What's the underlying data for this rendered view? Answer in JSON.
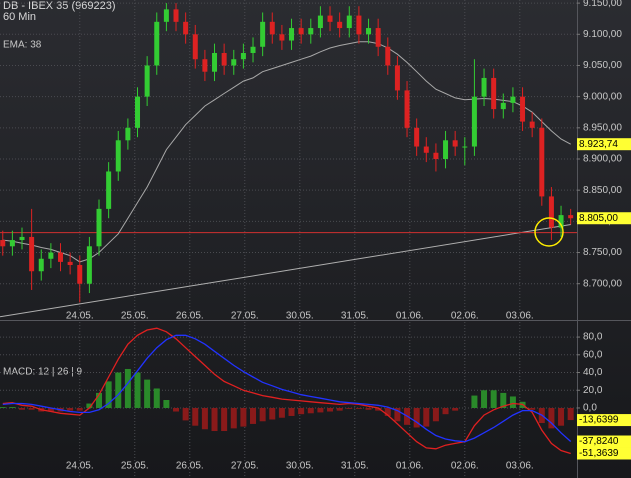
{
  "chart_data": [
    {
      "type": "candlestick",
      "title": "DB - IBEX 35 (969223)",
      "subtitle": "60 Min",
      "indicator_label": "EMA: 38",
      "x": [
        -0.4,
        -0.225,
        -0.05,
        0.125,
        0.3,
        0.475,
        0.65,
        0.825,
        1.0,
        1.175,
        1.35,
        1.525,
        1.7,
        1.875,
        2.05,
        2.225,
        2.4,
        2.575,
        2.75,
        2.925,
        3.1,
        3.275,
        3.45,
        3.625,
        3.8,
        3.975,
        4.15,
        4.325,
        4.5,
        4.675,
        4.85,
        5.025,
        5.2,
        5.375,
        5.55,
        5.725,
        5.9,
        6.075,
        6.25,
        6.425,
        6.6,
        6.775,
        6.95,
        7.125,
        7.3,
        7.475,
        7.65,
        7.825,
        8.0,
        8.175,
        8.35,
        8.525,
        8.7,
        8.875,
        9.05,
        9.225,
        9.4,
        9.575,
        9.75,
        9.925
      ],
      "open": [
        8770,
        8760,
        8770,
        8775,
        8720,
        8740,
        8750,
        8735,
        8730,
        8700,
        8760,
        8820,
        8880,
        8930,
        8950,
        9000,
        9050,
        9120,
        9140,
        9120,
        9100,
        9060,
        9040,
        9070,
        9050,
        9060,
        9070,
        9080,
        9120,
        9100,
        9090,
        9110,
        9100,
        9110,
        9130,
        9120,
        9110,
        9130,
        9100,
        9110,
        9080,
        9050,
        9010,
        8950,
        8920,
        8910,
        8900,
        8930,
        8920,
        8920,
        9000,
        9030,
        8980,
        8990,
        9000,
        8960,
        8950,
        8840,
        8790,
        8810
      ],
      "high": [
        8785,
        8785,
        8790,
        8820,
        8755,
        8765,
        8765,
        8750,
        8745,
        8775,
        8835,
        8895,
        8945,
        8965,
        9015,
        9065,
        9135,
        9150,
        9150,
        9135,
        9115,
        9075,
        9085,
        9085,
        9075,
        9085,
        9095,
        9135,
        9135,
        9115,
        9125,
        9125,
        9125,
        9145,
        9145,
        9135,
        9145,
        9145,
        9125,
        9125,
        9095,
        9065,
        9025,
        8965,
        8935,
        8925,
        8945,
        8945,
        8935,
        9060,
        9045,
        9045,
        9005,
        9015,
        9015,
        8975,
        8965,
        8855,
        8825,
        8820
      ],
      "low": [
        8745,
        8745,
        8755,
        8690,
        8705,
        8725,
        8720,
        8715,
        8670,
        8685,
        8745,
        8805,
        8865,
        8915,
        8935,
        8985,
        9035,
        9105,
        9105,
        9085,
        9045,
        9025,
        9025,
        9035,
        9035,
        9045,
        9055,
        9065,
        9085,
        9075,
        9075,
        9085,
        9085,
        9095,
        9105,
        9095,
        9095,
        9085,
        9085,
        9065,
        9035,
        8995,
        8935,
        8905,
        8895,
        8880,
        8885,
        8905,
        8890,
        8905,
        8985,
        8965,
        8965,
        8975,
        8945,
        8935,
        8825,
        8770,
        8775,
        8795
      ],
      "close": [
        8760,
        8770,
        8775,
        8720,
        8740,
        8750,
        8735,
        8730,
        8700,
        8760,
        8820,
        8880,
        8930,
        8950,
        9000,
        9050,
        9120,
        9140,
        9120,
        9100,
        9060,
        9040,
        9070,
        9050,
        9060,
        9070,
        9080,
        9120,
        9100,
        9090,
        9110,
        9100,
        9110,
        9130,
        9120,
        9110,
        9130,
        9100,
        9110,
        9080,
        9050,
        9010,
        8950,
        8920,
        8910,
        8900,
        8930,
        8920,
        8920,
        9000,
        9030,
        8980,
        8990,
        9000,
        8960,
        8950,
        8840,
        8790,
        8810,
        8805
      ],
      "up_color": "#33cc33",
      "down_color": "#dd2222",
      "ema_values": [
        8770,
        8768,
        8765,
        8762,
        8758,
        8755,
        8750,
        8745,
        8735,
        8740,
        8750,
        8765,
        8780,
        8805,
        8830,
        8855,
        8885,
        8915,
        8935,
        8955,
        8970,
        8985,
        8995,
        9005,
        9015,
        9025,
        9030,
        9040,
        9045,
        9050,
        9055,
        9060,
        9065,
        9072,
        9078,
        9082,
        9085,
        9088,
        9088,
        9085,
        9078,
        9068,
        9055,
        9040,
        9025,
        9012,
        9005,
        8998,
        8995,
        8996,
        8997,
        8996,
        8994,
        8992,
        8985,
        8975,
        8960,
        8945,
        8932,
        8923.74
      ],
      "ema_color": "#a8a8a8",
      "hline": 8782,
      "hline_color": "#d03030",
      "trendline": {
        "x": [
          -0.45,
          9.93
        ],
        "y": [
          8647,
          8795
        ],
        "color": "#b0b0b0"
      },
      "xlim": [
        -0.45,
        10.04
      ],
      "ylim": [
        8645,
        9155
      ],
      "xticks": [
        {
          "value": 1,
          "label": "24.05."
        },
        {
          "value": 2,
          "label": "25.05."
        },
        {
          "value": 3,
          "label": "26.05."
        },
        {
          "value": 4,
          "label": "27.05."
        },
        {
          "value": 5,
          "label": "30.05."
        },
        {
          "value": 6,
          "label": "31.05."
        },
        {
          "value": 7,
          "label": "01.06."
        },
        {
          "value": 8,
          "label": "02.06."
        },
        {
          "value": 9,
          "label": "03.06."
        }
      ],
      "yticks": [
        {
          "value": 8700,
          "label": "8.700,00"
        },
        {
          "value": 8750,
          "label": "8.750,00"
        },
        {
          "value": 8800,
          "label": "8.800,00"
        },
        {
          "value": 8850,
          "label": "8.850,00"
        },
        {
          "value": 8900,
          "label": "8.900,00"
        },
        {
          "value": 8950,
          "label": "8.950,00"
        },
        {
          "value": 9000,
          "label": "9.000,00"
        },
        {
          "value": 9050,
          "label": "9.050,00"
        },
        {
          "value": 9100,
          "label": "9.100,00"
        },
        {
          "value": 9150,
          "label": "9.150,00"
        }
      ],
      "grid": true,
      "right_labels": [
        {
          "value": 8923.74,
          "label": "8.923,74"
        },
        {
          "value": 8805,
          "label": "8.805,00"
        }
      ]
    },
    {
      "type": "macd",
      "title": "MACD: 12 | 26 | 9",
      "x": [
        -0.4,
        -0.225,
        -0.05,
        0.125,
        0.3,
        0.475,
        0.65,
        0.825,
        1.0,
        1.175,
        1.35,
        1.525,
        1.7,
        1.875,
        2.05,
        2.225,
        2.4,
        2.575,
        2.75,
        2.925,
        3.1,
        3.275,
        3.45,
        3.625,
        3.8,
        3.975,
        4.15,
        4.325,
        4.5,
        4.675,
        4.85,
        5.025,
        5.2,
        5.375,
        5.55,
        5.725,
        5.9,
        6.075,
        6.25,
        6.425,
        6.6,
        6.775,
        6.95,
        7.125,
        7.3,
        7.475,
        7.65,
        7.825,
        8.0,
        8.175,
        8.35,
        8.525,
        8.7,
        8.875,
        9.05,
        9.225,
        9.4,
        9.575,
        9.75,
        9.925
      ],
      "series": [
        {
          "style": "bar",
          "color": "#2a8a2a",
          "neg_color": "#8a1a1a",
          "values": [
            1,
            1,
            -2,
            -2,
            -4,
            -4,
            -4,
            -3,
            -3,
            5,
            17,
            30,
            40,
            44,
            40,
            32,
            22,
            9,
            -4,
            -14,
            -20,
            -24,
            -26,
            -26,
            -23,
            -21,
            -18,
            -15,
            -13,
            -11,
            -9,
            -7,
            -6,
            -5,
            -4,
            -3,
            -1,
            -1,
            -2,
            -3,
            -9,
            -15,
            -19,
            -22,
            -21,
            -15,
            -7,
            -3,
            0,
            14,
            20,
            20,
            17,
            13,
            7,
            -2,
            -17,
            -23,
            -20,
            -13.6399
          ]
        },
        {
          "style": "line",
          "color": "#e02020",
          "values": [
            5,
            6,
            3,
            2,
            -2,
            -4,
            -6,
            -7,
            -8,
            0,
            15,
            35,
            55,
            72,
            82,
            88,
            90,
            86,
            78,
            68,
            58,
            48,
            38,
            30,
            25,
            20,
            17,
            14,
            12,
            10,
            9,
            8,
            7,
            6,
            5,
            4,
            5,
            4,
            2,
            0,
            -8,
            -18,
            -28,
            -38,
            -45,
            -46,
            -42,
            -40,
            -38,
            -20,
            -8,
            -2,
            2,
            5,
            4,
            -5,
            -25,
            -40,
            -48,
            -51.3639
          ]
        },
        {
          "style": "line",
          "color": "#2233ff",
          "values": [
            4,
            5,
            5,
            4,
            2,
            0,
            -2,
            -4,
            -5,
            -5,
            -2,
            5,
            15,
            28,
            42,
            56,
            68,
            77,
            82,
            82,
            78,
            72,
            64,
            56,
            48,
            41,
            35,
            29,
            25,
            21,
            18,
            15,
            13,
            11,
            9,
            7,
            6,
            5,
            4,
            3,
            1,
            -3,
            -9,
            -16,
            -24,
            -31,
            -35,
            -37,
            -38,
            -34,
            -28,
            -22,
            -15,
            -8,
            -3,
            -3,
            -8,
            -17,
            -28,
            -37.824
          ]
        }
      ],
      "xlim": [
        -0.45,
        10.04
      ],
      "ylim": [
        -79,
        97
      ],
      "xticks": [
        {
          "value": 1,
          "label": "24.05."
        },
        {
          "value": 2,
          "label": "25.05."
        },
        {
          "value": 3,
          "label": "26.05."
        },
        {
          "value": 4,
          "label": "27.05."
        },
        {
          "value": 5,
          "label": "30.05."
        },
        {
          "value": 6,
          "label": "31.05."
        },
        {
          "value": 7,
          "label": "01.06."
        },
        {
          "value": 8,
          "label": "02.06."
        },
        {
          "value": 9,
          "label": "03.06."
        }
      ],
      "yticks": [
        {
          "value": 0,
          "label": "0,0"
        },
        {
          "value": 20,
          "label": "20,0"
        },
        {
          "value": 40,
          "label": "40,0"
        },
        {
          "value": 60,
          "label": "60,0"
        },
        {
          "value": 80,
          "label": "80,0"
        }
      ],
      "grid": true,
      "right_labels": [
        {
          "value": -13.6399,
          "label": "-13,6399"
        },
        {
          "value": -37.824,
          "label": "-37,8240"
        },
        {
          "value": -51.3639,
          "label": "-51,3639"
        }
      ]
    }
  ]
}
